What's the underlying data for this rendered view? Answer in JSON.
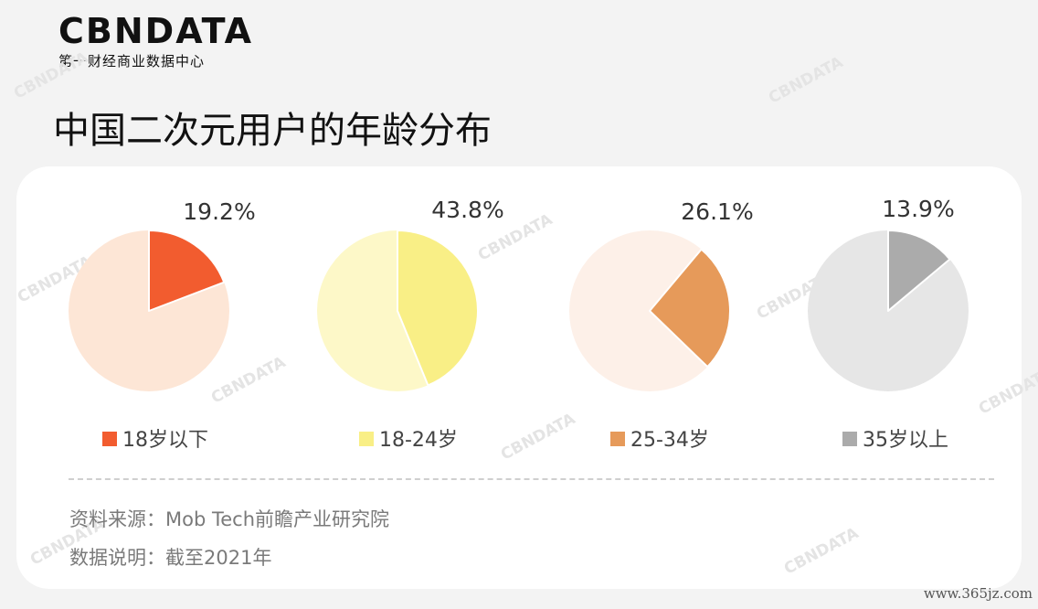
{
  "logo": {
    "mark": "CBNDATA",
    "subtitle": "第一财经商业数据中心"
  },
  "page_title": "中国二次元用户的年龄分布",
  "footer": {
    "source": "资料来源：Mob Tech前瞻产业研究院",
    "note": "数据说明：截至2021年"
  },
  "watermark": "CBNDATA",
  "site_stamp": "www.365jz.com",
  "chart_data": [
    {
      "type": "pie",
      "category": "18岁以下",
      "value": 19.2,
      "label": "19.2%",
      "color": "#f25c2f",
      "rest_color": "#fde6d6"
    },
    {
      "type": "pie",
      "category": "18-24岁",
      "value": 43.8,
      "label": "43.8%",
      "color": "#f9ef86",
      "rest_color": "#fdf8c8"
    },
    {
      "type": "pie",
      "category": "25-34岁",
      "value": 26.1,
      "label": "26.1%",
      "color": "#e69a5a",
      "rest_color": "#fdf0e8"
    },
    {
      "type": "pie",
      "category": "35岁以上",
      "value": 13.9,
      "label": "13.9%",
      "color": "#ababab",
      "rest_color": "#e6e6e6"
    }
  ]
}
